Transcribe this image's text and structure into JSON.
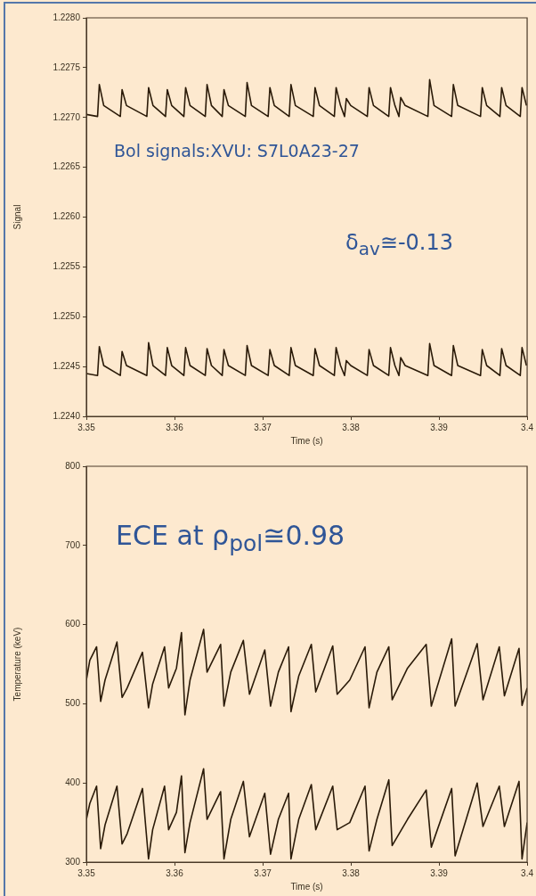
{
  "chart_data": [
    {
      "type": "line",
      "xlabel": "Time (s)",
      "ylabel": "Signal",
      "grid": false,
      "xlim": [
        3.35,
        3.4
      ],
      "xticks": [
        3.35,
        3.36,
        3.37,
        3.38,
        3.39,
        3.4
      ],
      "ylim": [
        1.224,
        1.228
      ],
      "yticks": [
        {
          "value": 1.224,
          "label": "1.2240"
        },
        {
          "value": 1.2245,
          "label": "1.2245"
        },
        {
          "value": 1.225,
          "label": "1.2250"
        },
        {
          "value": 1.2255,
          "label": "1.2255"
        },
        {
          "value": 1.226,
          "label": "1.2260"
        },
        {
          "value": 1.2265,
          "label": "1.2265"
        },
        {
          "value": 1.227,
          "label": "1.2270"
        },
        {
          "value": 1.2275,
          "label": "1.2275"
        },
        {
          "value": 1.228,
          "label": "1.2280"
        }
      ],
      "annotations": [
        "Bol signals:XVU: S7L0A23-27",
        "δ$_{av}$≅-0.13"
      ],
      "x": [
        3.35,
        3.35127,
        3.35147,
        3.35197,
        3.35385,
        3.35405,
        3.35455,
        3.35686,
        3.35706,
        3.35756,
        3.35898,
        3.35918,
        3.35968,
        3.36106,
        3.36126,
        3.36176,
        3.36349,
        3.36369,
        3.36419,
        3.36541,
        3.36561,
        3.36611,
        3.36803,
        3.36823,
        3.36873,
        3.37062,
        3.37082,
        3.37132,
        3.37301,
        3.37321,
        3.37371,
        3.37574,
        3.37594,
        3.37644,
        3.37813,
        3.37833,
        3.37883,
        3.37929,
        3.37949,
        3.37999,
        3.38187,
        3.38207,
        3.38257,
        3.3843,
        3.3845,
        3.385,
        3.38546,
        3.38566,
        3.38616,
        3.38874,
        3.38894,
        3.38944,
        3.39143,
        3.39163,
        3.39213,
        3.39471,
        3.39491,
        3.39541,
        3.39691,
        3.39711,
        3.39761,
        3.39922,
        3.39942,
        3.39992
      ],
      "series": [
        {
          "color": "#2a1a08",
          "values": [
            1.22703,
            1.22701,
            1.22733,
            1.22712,
            1.22701,
            1.22728,
            1.22712,
            1.22701,
            1.2273,
            1.22712,
            1.22701,
            1.22728,
            1.22712,
            1.22701,
            1.2273,
            1.22712,
            1.22701,
            1.22733,
            1.22712,
            1.22701,
            1.22728,
            1.22712,
            1.22701,
            1.22735,
            1.22712,
            1.22701,
            1.2273,
            1.22712,
            1.22701,
            1.22733,
            1.22712,
            1.22701,
            1.2273,
            1.22712,
            1.22701,
            1.2273,
            1.22712,
            1.22701,
            1.22719,
            1.22712,
            1.22701,
            1.2273,
            1.22712,
            1.22701,
            1.2273,
            1.22712,
            1.22701,
            1.2272,
            1.22712,
            1.22701,
            1.22738,
            1.22712,
            1.22701,
            1.22733,
            1.22712,
            1.22701,
            1.2273,
            1.22712,
            1.22701,
            1.2273,
            1.22712,
            1.22701,
            1.2273,
            1.22712
          ]
        },
        {
          "color": "#2a1a08",
          "values": [
            1.22443,
            1.22441,
            1.2247,
            1.22451,
            1.22441,
            1.22465,
            1.22451,
            1.22441,
            1.22474,
            1.22451,
            1.22441,
            1.22469,
            1.22451,
            1.22441,
            1.22469,
            1.22451,
            1.22441,
            1.22468,
            1.22451,
            1.22441,
            1.22467,
            1.22451,
            1.22441,
            1.22471,
            1.22451,
            1.22441,
            1.22467,
            1.22451,
            1.22441,
            1.22469,
            1.22451,
            1.22441,
            1.22468,
            1.22451,
            1.22441,
            1.22469,
            1.22451,
            1.22441,
            1.22456,
            1.22451,
            1.22441,
            1.22467,
            1.22451,
            1.22441,
            1.22469,
            1.22451,
            1.22441,
            1.22459,
            1.22451,
            1.22441,
            1.22473,
            1.22451,
            1.22441,
            1.22471,
            1.22451,
            1.22441,
            1.22467,
            1.22451,
            1.22441,
            1.22468,
            1.22451,
            1.22441,
            1.22469,
            1.22451
          ]
        }
      ]
    },
    {
      "type": "line",
      "xlabel": "Time (s)",
      "ylabel": "Temperature (keV)",
      "grid": false,
      "xlim": [
        3.35,
        3.4
      ],
      "xticks": [
        3.35,
        3.36,
        3.37,
        3.38,
        3.39,
        3.4
      ],
      "ylim": [
        300,
        800
      ],
      "yticks": [
        300,
        400,
        500,
        600,
        700,
        800
      ],
      "annotations": [
        "ECE at ρ$_{pol}$≅0.98"
      ],
      "x": [
        3.35,
        3.35039,
        3.35116,
        3.35162,
        3.35212,
        3.35347,
        3.35405,
        3.35463,
        3.35636,
        3.35705,
        3.35752,
        3.35887,
        3.35933,
        3.36022,
        3.36079,
        3.36118,
        3.36176,
        3.3633,
        3.36369,
        3.36523,
        3.36561,
        3.36638,
        3.36781,
        3.3685,
        3.37024,
        3.37089,
        3.37178,
        3.37294,
        3.37321,
        3.37409,
        3.37552,
        3.37602,
        3.37795,
        3.37845,
        3.37988,
        3.38161,
        3.38207,
        3.38296,
        3.38431,
        3.38469,
        3.38643,
        3.38855,
        3.38913,
        3.39144,
        3.39183,
        3.39433,
        3.39499,
        3.39684,
        3.39742,
        3.39908,
        3.39942,
        3.4
      ],
      "series": [
        {
          "color": "#2a1a08",
          "values": [
            530,
            555,
            572,
            503,
            530,
            578,
            508,
            520,
            565,
            495,
            525,
            572,
            520,
            545,
            590,
            486,
            530,
            594,
            540,
            575,
            497,
            540,
            580,
            512,
            568,
            497,
            540,
            572,
            490,
            535,
            575,
            515,
            573,
            512,
            530,
            572,
            495,
            540,
            572,
            505,
            545,
            575,
            497,
            582,
            497,
            576,
            505,
            572,
            510,
            570,
            498,
            520
          ]
        },
        {
          "color": "#2a1a08",
          "values": [
            354,
            374,
            396,
            317,
            347,
            396,
            323,
            336,
            393,
            304,
            341,
            396,
            341,
            363,
            409,
            312,
            350,
            418,
            354,
            389,
            304,
            354,
            402,
            332,
            387,
            310,
            354,
            387,
            304,
            354,
            398,
            341,
            396,
            341,
            350,
            396,
            314,
            354,
            404,
            321,
            354,
            391,
            319,
            393,
            308,
            400,
            345,
            396,
            345,
            402,
            304,
            350
          ]
        }
      ]
    }
  ]
}
